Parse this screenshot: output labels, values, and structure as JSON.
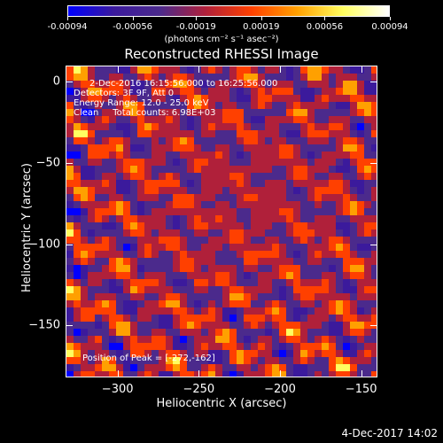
{
  "chart_data": {
    "type": "heatmap",
    "title": "Reconstructed RHESSI Image",
    "xlabel": "Heliocentric X (arcsec)",
    "ylabel": "Heliocentric Y (arcsec)",
    "xlim": [
      -332,
      -140
    ],
    "ylim": [
      -182,
      10
    ],
    "x_ticks": [
      "−300",
      "−250",
      "−200",
      "−150"
    ],
    "x_tick_values": [
      -300,
      -250,
      -200,
      -150
    ],
    "y_ticks": [
      "0",
      "−50",
      "−100",
      "−150"
    ],
    "y_tick_values": [
      0,
      -50,
      -100,
      -150
    ],
    "colorbar": {
      "ticks": [
        "-0.00094",
        "-0.00056",
        "-0.00019",
        "0.00019",
        "0.00056",
        "0.00094"
      ],
      "tick_values": [
        -0.00094,
        -0.00056,
        -0.00019,
        0.00019,
        0.00056,
        0.00094
      ],
      "units": "(photons cm⁻² s⁻¹ asec⁻²)",
      "colors": [
        "#0000ff",
        "#3b1a9c",
        "#4b2a8c",
        "#b0203a",
        "#ff4000",
        "#ffa000",
        "#ffff60",
        "#ffffff"
      ]
    },
    "annotations": {
      "time_range": "2-Dec-2016 16:15:56.000 to 16:25:56.000",
      "detectors": "Detectors: 3F 9F, Att 0",
      "energy_range": "Energy Range: 12.0 - 25.0 keV",
      "algorithm": "Clean     Total counts: 6.98E+03",
      "peak": "Position of Peak = [-272,-162]"
    },
    "peak_position": [
      -272,
      -162
    ],
    "grid": false
  },
  "footer": {
    "timestamp": "4-Dec-2017 14:02"
  }
}
